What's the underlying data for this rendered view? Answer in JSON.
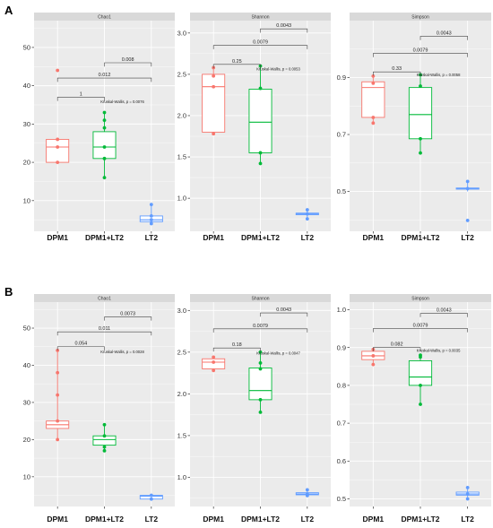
{
  "panels": [
    {
      "letter": "A"
    },
    {
      "letter": "B"
    }
  ],
  "colors": {
    "DPM1": "#F8766D",
    "DPM1+LT2": "#00BA38",
    "LT2": "#619CFF",
    "panel_bg": "#EBEBEB",
    "grid": "#FFFFFF",
    "strip_bg": "#D9D9D9"
  },
  "chart_data": [
    {
      "type": "box",
      "panel": "A",
      "title": "Chao1",
      "categories": [
        "DPM1",
        "DPM1+LT2",
        "LT2"
      ],
      "ylim": [
        2,
        57
      ],
      "yticks": [
        10,
        20,
        30,
        40,
        50
      ],
      "boxes": [
        {
          "q1": 20,
          "median": 24,
          "q3": 26,
          "whisker_low": 20,
          "whisker_high": 26,
          "points": [
            20,
            24,
            26,
            44
          ]
        },
        {
          "q1": 21,
          "median": 24,
          "q3": 28,
          "whisker_low": 16,
          "whisker_high": 33,
          "points": [
            16,
            21,
            24,
            29,
            31,
            33
          ]
        },
        {
          "q1": 4.5,
          "median": 5,
          "q3": 6,
          "whisker_low": 4,
          "whisker_high": 9,
          "points": [
            4,
            5,
            6,
            9
          ]
        }
      ],
      "brackets": [
        {
          "from": 0,
          "to": 1,
          "y": 37,
          "label": "1"
        },
        {
          "from": 0,
          "to": 2,
          "y": 42,
          "label": "0.012"
        },
        {
          "from": 1,
          "to": 2,
          "y": 46,
          "label": "0.008"
        }
      ],
      "annotation": {
        "text": "Kruskal-Wallis, p = 0.0076",
        "x": 1.3,
        "y": 35.5
      }
    },
    {
      "type": "box",
      "panel": "A",
      "title": "Shannon",
      "categories": [
        "DPM1",
        "DPM1+LT2",
        "LT2"
      ],
      "ylim": [
        0.6,
        3.15
      ],
      "yticks": [
        1.0,
        1.5,
        2.0,
        2.5,
        3.0
      ],
      "boxes": [
        {
          "q1": 1.8,
          "median": 2.35,
          "q3": 2.5,
          "whisker_low": 1.78,
          "whisker_high": 2.58,
          "points": [
            1.78,
            2.35,
            2.48,
            2.58
          ]
        },
        {
          "q1": 1.55,
          "median": 1.92,
          "q3": 2.32,
          "whisker_low": 1.42,
          "whisker_high": 2.6,
          "points": [
            1.42,
            1.55,
            2.33,
            2.6
          ]
        },
        {
          "q1": 0.8,
          "median": 0.81,
          "q3": 0.82,
          "whisker_low": 0.75,
          "whisker_high": 0.86,
          "points": [
            0.75,
            0.81,
            0.86
          ]
        }
      ],
      "brackets": [
        {
          "from": 0,
          "to": 1,
          "y": 2.62,
          "label": "0.25"
        },
        {
          "from": 0,
          "to": 2,
          "y": 2.85,
          "label": "0.0079"
        },
        {
          "from": 1,
          "to": 2,
          "y": 3.05,
          "label": "0.0043"
        }
      ],
      "annotation": {
        "text": "Kruskal-Wallis, p = 0.0053",
        "x": 1.3,
        "y": 2.55
      }
    },
    {
      "type": "box",
      "panel": "A",
      "title": "Simpson",
      "categories": [
        "DPM1",
        "DPM1+LT2",
        "LT2"
      ],
      "ylim": [
        0.36,
        1.1
      ],
      "yticks": [
        0.5,
        0.7,
        0.9
      ],
      "boxes": [
        {
          "q1": 0.76,
          "median": 0.865,
          "q3": 0.885,
          "whisker_low": 0.74,
          "whisker_high": 0.905,
          "points": [
            0.74,
            0.76,
            0.88,
            0.905
          ]
        },
        {
          "q1": 0.685,
          "median": 0.77,
          "q3": 0.865,
          "whisker_low": 0.635,
          "whisker_high": 0.91,
          "points": [
            0.635,
            0.685,
            0.87,
            0.91
          ]
        },
        {
          "q1": 0.508,
          "median": 0.51,
          "q3": 0.512,
          "whisker_low": 0.5,
          "whisker_high": 0.535,
          "points": [
            0.398,
            0.51,
            0.535
          ]
        }
      ],
      "brackets": [
        {
          "from": 0,
          "to": 1,
          "y": 0.92,
          "label": "0.33"
        },
        {
          "from": 0,
          "to": 2,
          "y": 0.985,
          "label": "0.0079"
        },
        {
          "from": 1,
          "to": 2,
          "y": 1.045,
          "label": "0.0043"
        }
      ],
      "annotation": {
        "text": "Kruskal-Wallis, p = 0.0058",
        "x": 1.3,
        "y": 0.905
      }
    },
    {
      "type": "box",
      "panel": "B",
      "title": "Chao1",
      "categories": [
        "DPM1",
        "DPM1+LT2",
        "LT2"
      ],
      "ylim": [
        2,
        57
      ],
      "yticks": [
        10,
        20,
        30,
        40,
        50
      ],
      "boxes": [
        {
          "q1": 23,
          "median": 24,
          "q3": 25,
          "whisker_low": 20,
          "whisker_high": 44,
          "points": [
            20,
            25,
            32,
            38,
            44
          ]
        },
        {
          "q1": 18.5,
          "median": 20,
          "q3": 21,
          "whisker_low": 17,
          "whisker_high": 24,
          "points": [
            17,
            18,
            21,
            24
          ]
        },
        {
          "q1": 4,
          "median": 4.8,
          "q3": 5,
          "whisker_low": 4,
          "whisker_high": 5,
          "points": [
            4,
            5
          ]
        }
      ],
      "brackets": [
        {
          "from": 0,
          "to": 1,
          "y": 45,
          "label": "0.054"
        },
        {
          "from": 0,
          "to": 2,
          "y": 49,
          "label": "0.011"
        },
        {
          "from": 1,
          "to": 2,
          "y": 53,
          "label": "0.0073"
        }
      ],
      "annotation": {
        "text": "Kruskal-Wallis, p = 0.0028",
        "x": 1.3,
        "y": 43.2
      }
    },
    {
      "type": "box",
      "panel": "B",
      "title": "Shannon",
      "categories": [
        "DPM1",
        "DPM1+LT2",
        "LT2"
      ],
      "ylim": [
        0.65,
        3.1
      ],
      "yticks": [
        1.0,
        1.5,
        2.0,
        2.5,
        3.0
      ],
      "boxes": [
        {
          "q1": 2.3,
          "median": 2.38,
          "q3": 2.42,
          "whisker_low": 2.28,
          "whisker_high": 2.44,
          "points": [
            2.28,
            2.38,
            2.44
          ]
        },
        {
          "q1": 1.93,
          "median": 2.04,
          "q3": 2.31,
          "whisker_low": 1.78,
          "whisker_high": 2.5,
          "points": [
            1.78,
            1.93,
            2.3,
            2.37,
            2.5
          ]
        },
        {
          "q1": 0.79,
          "median": 0.8,
          "q3": 0.815,
          "whisker_low": 0.78,
          "whisker_high": 0.85,
          "points": [
            0.78,
            0.8,
            0.85
          ]
        }
      ],
      "brackets": [
        {
          "from": 0,
          "to": 1,
          "y": 2.55,
          "label": "0.18"
        },
        {
          "from": 0,
          "to": 2,
          "y": 2.78,
          "label": "0.0079"
        },
        {
          "from": 1,
          "to": 2,
          "y": 2.97,
          "label": "0.0043"
        }
      ],
      "annotation": {
        "text": "Kruskal-Wallis, p = 0.0047",
        "x": 1.3,
        "y": 2.47
      }
    },
    {
      "type": "box",
      "panel": "B",
      "title": "Simpson",
      "categories": [
        "DPM1",
        "DPM1+LT2",
        "LT2"
      ],
      "ylim": [
        0.48,
        1.02
      ],
      "yticks": [
        0.5,
        0.6,
        0.7,
        0.8,
        0.9,
        1.0
      ],
      "boxes": [
        {
          "q1": 0.868,
          "median": 0.878,
          "q3": 0.89,
          "whisker_low": 0.855,
          "whisker_high": 0.895,
          "points": [
            0.855,
            0.878,
            0.895
          ]
        },
        {
          "q1": 0.8,
          "median": 0.822,
          "q3": 0.865,
          "whisker_low": 0.75,
          "whisker_high": 0.88,
          "points": [
            0.75,
            0.8,
            0.875,
            0.88
          ]
        },
        {
          "q1": 0.51,
          "median": 0.513,
          "q3": 0.518,
          "whisker_low": 0.5,
          "whisker_high": 0.53,
          "points": [
            0.5,
            0.513,
            0.53
          ]
        }
      ],
      "brackets": [
        {
          "from": 0,
          "to": 1,
          "y": 0.9,
          "label": "0.082"
        },
        {
          "from": 0,
          "to": 2,
          "y": 0.95,
          "label": "0.0079"
        },
        {
          "from": 1,
          "to": 2,
          "y": 0.99,
          "label": "0.0043"
        }
      ],
      "annotation": {
        "text": "Kruskal-Wallis, p = 0.0035",
        "x": 1.3,
        "y": 0.888
      }
    }
  ]
}
